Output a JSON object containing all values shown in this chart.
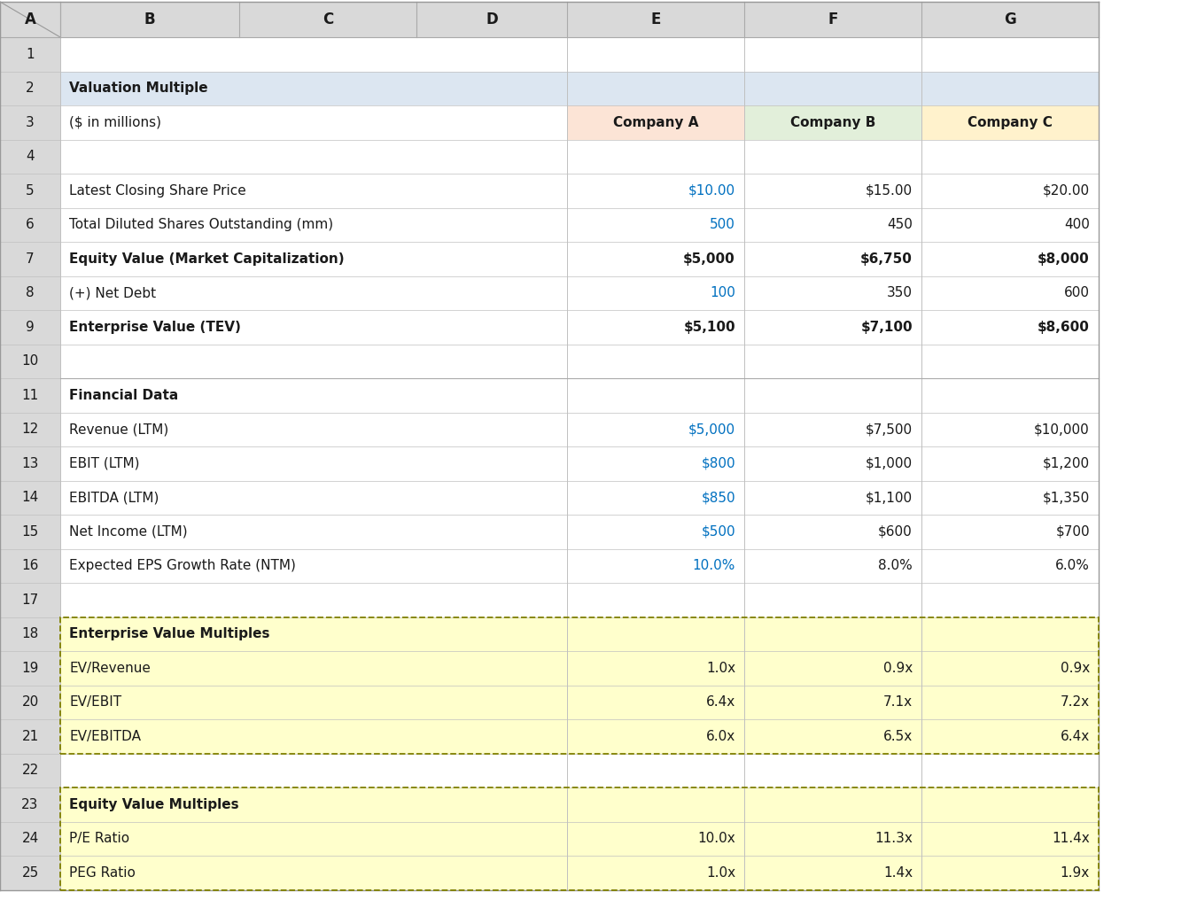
{
  "bg_color": "#ffffff",
  "col_header_bg": "#d9d9d9",
  "col_header_text": "#1a1a1a",
  "row2_bg": "#dce6f1",
  "company_a_bg": "#fce4d6",
  "company_b_bg": "#e2efda",
  "company_c_bg": "#fff2cc",
  "section_bg": "#ffffcc",
  "blue_color": "#0070c0",
  "black_color": "#1a1a1a",
  "grid_color": "#c0c0c0",
  "section_border_color": "#808000",
  "rows": [
    {
      "row": 1,
      "label": "",
      "e": "",
      "f": "",
      "g": "",
      "label_bold": false,
      "e_blue": false,
      "f_blue": false,
      "g_blue": false,
      "row_bg": "white"
    },
    {
      "row": 2,
      "label": "Valuation Multiple",
      "e": "",
      "f": "",
      "g": "",
      "label_bold": true,
      "e_blue": false,
      "f_blue": false,
      "g_blue": false,
      "row_bg": "row2"
    },
    {
      "row": 3,
      "label": "($ in millions)",
      "e": "Company A",
      "f": "Company B",
      "g": "Company C",
      "label_bold": false,
      "e_blue": false,
      "f_blue": false,
      "g_blue": false,
      "row_bg": "header3"
    },
    {
      "row": 4,
      "label": "",
      "e": "",
      "f": "",
      "g": "",
      "label_bold": false,
      "e_blue": false,
      "f_blue": false,
      "g_blue": false,
      "row_bg": "white"
    },
    {
      "row": 5,
      "label": "Latest Closing Share Price",
      "e": "$10.00",
      "f": "$15.00",
      "g": "$20.00",
      "label_bold": false,
      "e_blue": true,
      "f_blue": false,
      "g_blue": false,
      "row_bg": "white"
    },
    {
      "row": 6,
      "label": "Total Diluted Shares Outstanding (mm)",
      "e": "500",
      "f": "450",
      "g": "400",
      "label_bold": false,
      "e_blue": true,
      "f_blue": false,
      "g_blue": false,
      "row_bg": "white"
    },
    {
      "row": 7,
      "label": "Equity Value (Market Capitalization)",
      "e": "$5,000",
      "f": "$6,750",
      "g": "$8,000",
      "label_bold": true,
      "e_blue": false,
      "f_blue": false,
      "g_blue": false,
      "row_bg": "white"
    },
    {
      "row": 8,
      "label": "(+) Net Debt",
      "e": "100",
      "f": "350",
      "g": "600",
      "label_bold": false,
      "e_blue": true,
      "f_blue": false,
      "g_blue": false,
      "row_bg": "white"
    },
    {
      "row": 9,
      "label": "Enterprise Value (TEV)",
      "e": "$5,100",
      "f": "$7,100",
      "g": "$8,600",
      "label_bold": true,
      "e_blue": false,
      "f_blue": false,
      "g_blue": false,
      "row_bg": "white"
    },
    {
      "row": 10,
      "label": "",
      "e": "",
      "f": "",
      "g": "",
      "label_bold": false,
      "e_blue": false,
      "f_blue": false,
      "g_blue": false,
      "row_bg": "white"
    },
    {
      "row": 11,
      "label": "Financial Data",
      "e": "",
      "f": "",
      "g": "",
      "label_bold": true,
      "e_blue": false,
      "f_blue": false,
      "g_blue": false,
      "row_bg": "white"
    },
    {
      "row": 12,
      "label": "Revenue (LTM)",
      "e": "$5,000",
      "f": "$7,500",
      "g": "$10,000",
      "label_bold": false,
      "e_blue": true,
      "f_blue": false,
      "g_blue": false,
      "row_bg": "white"
    },
    {
      "row": 13,
      "label": "EBIT (LTM)",
      "e": "$800",
      "f": "$1,000",
      "g": "$1,200",
      "label_bold": false,
      "e_blue": true,
      "f_blue": false,
      "g_blue": false,
      "row_bg": "white"
    },
    {
      "row": 14,
      "label": "EBITDA (LTM)",
      "e": "$850",
      "f": "$1,100",
      "g": "$1,350",
      "label_bold": false,
      "e_blue": true,
      "f_blue": false,
      "g_blue": false,
      "row_bg": "white"
    },
    {
      "row": 15,
      "label": "Net Income (LTM)",
      "e": "$500",
      "f": "$600",
      "g": "$700",
      "label_bold": false,
      "e_blue": true,
      "f_blue": false,
      "g_blue": false,
      "row_bg": "white"
    },
    {
      "row": 16,
      "label": "Expected EPS Growth Rate (NTM)",
      "e": "10.0%",
      "f": "8.0%",
      "g": "6.0%",
      "label_bold": false,
      "e_blue": true,
      "f_blue": false,
      "g_blue": false,
      "row_bg": "white"
    },
    {
      "row": 17,
      "label": "",
      "e": "",
      "f": "",
      "g": "",
      "label_bold": false,
      "e_blue": false,
      "f_blue": false,
      "g_blue": false,
      "row_bg": "white"
    },
    {
      "row": 18,
      "label": "Enterprise Value Multiples",
      "e": "",
      "f": "",
      "g": "",
      "label_bold": true,
      "e_blue": false,
      "f_blue": false,
      "g_blue": false,
      "row_bg": "section"
    },
    {
      "row": 19,
      "label": "EV/Revenue",
      "e": "1.0x",
      "f": "0.9x",
      "g": "0.9x",
      "label_bold": false,
      "e_blue": false,
      "f_blue": false,
      "g_blue": false,
      "row_bg": "section"
    },
    {
      "row": 20,
      "label": "EV/EBIT",
      "e": "6.4x",
      "f": "7.1x",
      "g": "7.2x",
      "label_bold": false,
      "e_blue": false,
      "f_blue": false,
      "g_blue": false,
      "row_bg": "section"
    },
    {
      "row": 21,
      "label": "EV/EBITDA",
      "e": "6.0x",
      "f": "6.5x",
      "g": "6.4x",
      "label_bold": false,
      "e_blue": false,
      "f_blue": false,
      "g_blue": false,
      "row_bg": "section"
    },
    {
      "row": 22,
      "label": "",
      "e": "",
      "f": "",
      "g": "",
      "label_bold": false,
      "e_blue": false,
      "f_blue": false,
      "g_blue": false,
      "row_bg": "white"
    },
    {
      "row": 23,
      "label": "Equity Value Multiples",
      "e": "",
      "f": "",
      "g": "",
      "label_bold": true,
      "e_blue": false,
      "f_blue": false,
      "g_blue": false,
      "row_bg": "section"
    },
    {
      "row": 24,
      "label": "P/E Ratio",
      "e": "10.0x",
      "f": "11.3x",
      "g": "11.4x",
      "label_bold": false,
      "e_blue": false,
      "f_blue": false,
      "g_blue": false,
      "row_bg": "section"
    },
    {
      "row": 25,
      "label": "PEG Ratio",
      "e": "1.0x",
      "f": "1.4x",
      "g": "1.9x",
      "label_bold": false,
      "e_blue": false,
      "f_blue": false,
      "g_blue": false,
      "row_bg": "section"
    }
  ]
}
